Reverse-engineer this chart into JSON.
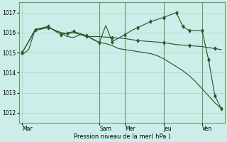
{
  "background_color": "#cceee8",
  "grid_color": "#aaddcc",
  "line_color": "#2d5a2d",
  "xlabel": "Pression niveau de la mer( hPa )",
  "ylim": [
    1011.5,
    1017.5
  ],
  "yticks": [
    1012,
    1013,
    1014,
    1015,
    1016,
    1017
  ],
  "x_day_labels": [
    "Mar",
    "Sam",
    "Mer",
    "Jeu",
    "Ven"
  ],
  "x_day_positions": [
    0,
    12,
    16,
    22,
    28
  ],
  "n_points": 32,
  "series1": [
    1014.9,
    1015.15,
    1016.15,
    1016.2,
    1016.3,
    1016.1,
    1016.0,
    1015.8,
    1015.75,
    1015.9,
    1015.85,
    1015.65,
    1015.5,
    1015.45,
    1015.35,
    1015.2,
    1015.15,
    1015.1,
    1015.05,
    1015.0,
    1014.95,
    1014.85,
    1014.7,
    1014.5,
    1014.3,
    1014.1,
    1013.85,
    1013.55,
    1013.2,
    1012.85,
    1012.5,
    1012.2
  ],
  "series2_x": [
    0,
    2,
    4,
    5,
    6,
    8,
    10,
    12,
    13,
    14,
    16,
    17,
    18,
    20,
    22,
    24,
    25,
    26,
    28,
    29,
    30,
    31
  ],
  "series2_y": [
    1015.0,
    1016.15,
    1016.3,
    1016.1,
    1015.9,
    1016.05,
    1015.85,
    1015.5,
    1016.35,
    1015.55,
    1015.9,
    1016.1,
    1016.25,
    1016.55,
    1016.75,
    1017.0,
    1016.3,
    1016.1,
    1016.1,
    1014.65,
    1012.85,
    1012.2
  ],
  "series2_markers": [
    0,
    2,
    4,
    6,
    8,
    10,
    12,
    14,
    16,
    18,
    20,
    22,
    24,
    25,
    26,
    28,
    29,
    30,
    31
  ],
  "series3_x": [
    0,
    2,
    4,
    6,
    7,
    8,
    10,
    12,
    14,
    16,
    18,
    20,
    22,
    24,
    26,
    28,
    30,
    31
  ],
  "series3_y": [
    1015.0,
    1016.1,
    1016.25,
    1016.0,
    1015.95,
    1016.0,
    1015.8,
    1015.8,
    1015.75,
    1015.7,
    1015.6,
    1015.55,
    1015.5,
    1015.4,
    1015.35,
    1015.3,
    1015.2,
    1015.15
  ],
  "vline_positions": [
    12,
    16,
    22,
    28
  ],
  "vline_color": "#6a9a6a",
  "spine_color": "#6a9a6a"
}
